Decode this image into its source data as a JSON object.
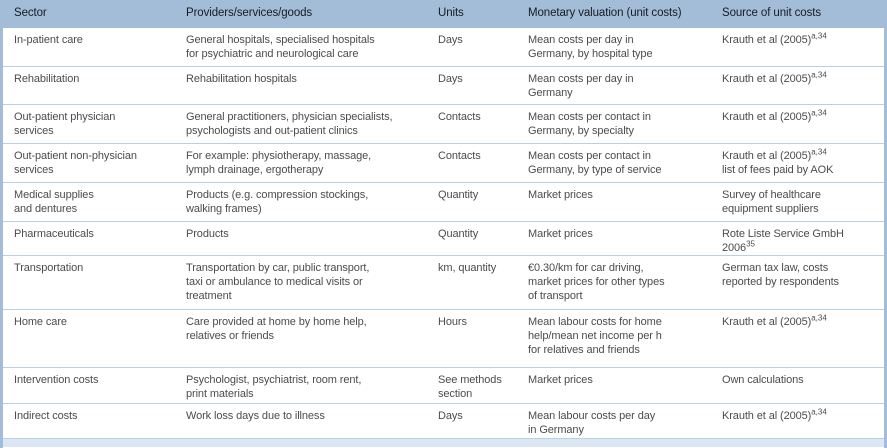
{
  "table": {
    "columns": [
      "Sector",
      "Providers/services/goods",
      "Units",
      "Monetary valuation (unit costs)",
      "Source of unit costs"
    ],
    "rows": [
      [
        "In-patient care",
        "General hospitals, specialised hospitals\nfor psychiatric and neurological care",
        "Days",
        "Mean costs per day in\nGermany, by hospital type",
        "Krauth et al (2005)^{a,34}"
      ],
      [
        "Rehabilitation",
        "Rehabilitation hospitals",
        "Days",
        "Mean costs per day in\nGermany",
        "Krauth et al (2005)^{a,34}"
      ],
      [
        "Out-patient physician\nservices",
        "General practitioners, physician specialists,\npsychologists and out-patient clinics",
        "Contacts",
        "Mean costs per contact in\nGermany, by specialty",
        "Krauth et al (2005)^{a,34}"
      ],
      [
        "Out-patient non-physician\nservices",
        "For example: physiotherapy, massage,\nlymph drainage, ergotherapy",
        "Contacts",
        "Mean costs per contact in\nGermany, by type of service",
        "Krauth et al (2005)^{a,34}\nlist of fees paid by AOK"
      ],
      [
        "Medical supplies\nand dentures",
        "Products (e.g. compression stockings,\nwalking frames)",
        "Quantity",
        "Market prices",
        "Survey of healthcare\nequipment suppliers"
      ],
      [
        "Pharmaceuticals",
        "Products",
        "Quantity",
        "Market prices",
        "Rote Liste Service GmbH\n2006^{35}"
      ],
      [
        "Transportation",
        "Transportation by car, public transport,\ntaxi or ambulance to medical visits or\ntreatment",
        "km, quantity",
        "€0.30/km for car driving,\nmarket prices for other types\nof transport",
        "German tax law, costs\nreported by respondents"
      ],
      [
        "Home care",
        "Care provided at home by home help,\nrelatives or friends",
        "Hours",
        "Mean labour costs for home\nhelp/mean net income per h\nfor relatives and friends",
        "Krauth et al (2005)^{a,34}"
      ],
      [
        "Intervention costs",
        "Psychologist, psychiatrist, room rent,\nprint materials",
        "See methods\nsection",
        "Market prices",
        "Own calculations"
      ],
      [
        "Indirect costs",
        "Work loss days due to illness",
        "Days",
        "Mean labour costs per day\nin Germany",
        "Krauth et al (2005)^{a,34}"
      ]
    ]
  },
  "colors": {
    "header_bg": "#a3bcd8",
    "row_divider": "#b6d0e7",
    "bottom_strip": "#dbe7f3",
    "header_text": "#171c24",
    "body_text": "#4c4c4c"
  }
}
